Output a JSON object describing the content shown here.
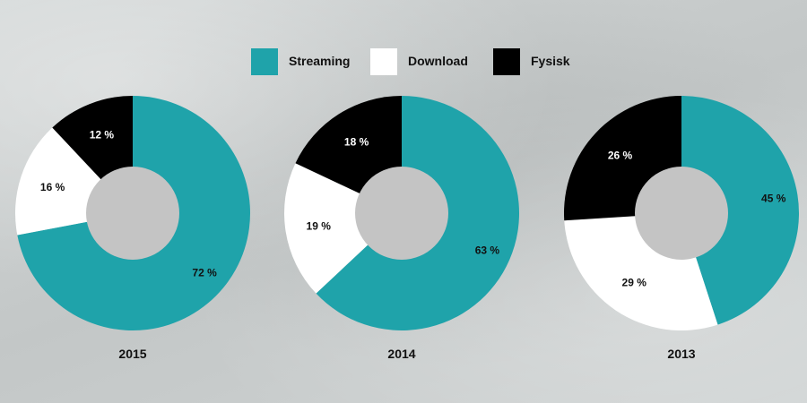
{
  "legend": [
    {
      "label": "Streaming",
      "color": "#1fa3aa"
    },
    {
      "label": "Download",
      "color": "#ffffff"
    },
    {
      "label": "Fysisk",
      "color": "#000000"
    }
  ],
  "chart_data": {
    "type": "pie",
    "variant": "donut",
    "series_names": [
      "Streaming",
      "Download",
      "Fysisk"
    ],
    "colors": [
      "#1fa3aa",
      "#ffffff",
      "#000000"
    ],
    "hole_color": "#c4c4c4",
    "charts": [
      {
        "year": "2015",
        "values": [
          72,
          16,
          12
        ],
        "labels": [
          "72 %",
          "16 %",
          "12 %"
        ]
      },
      {
        "year": "2014",
        "values": [
          63,
          19,
          18
        ],
        "labels": [
          "63 %",
          "19 %",
          "18 %"
        ]
      },
      {
        "year": "2013",
        "values": [
          45,
          29,
          26
        ],
        "labels": [
          "45 %",
          "29 %",
          "26 %"
        ]
      }
    ]
  }
}
